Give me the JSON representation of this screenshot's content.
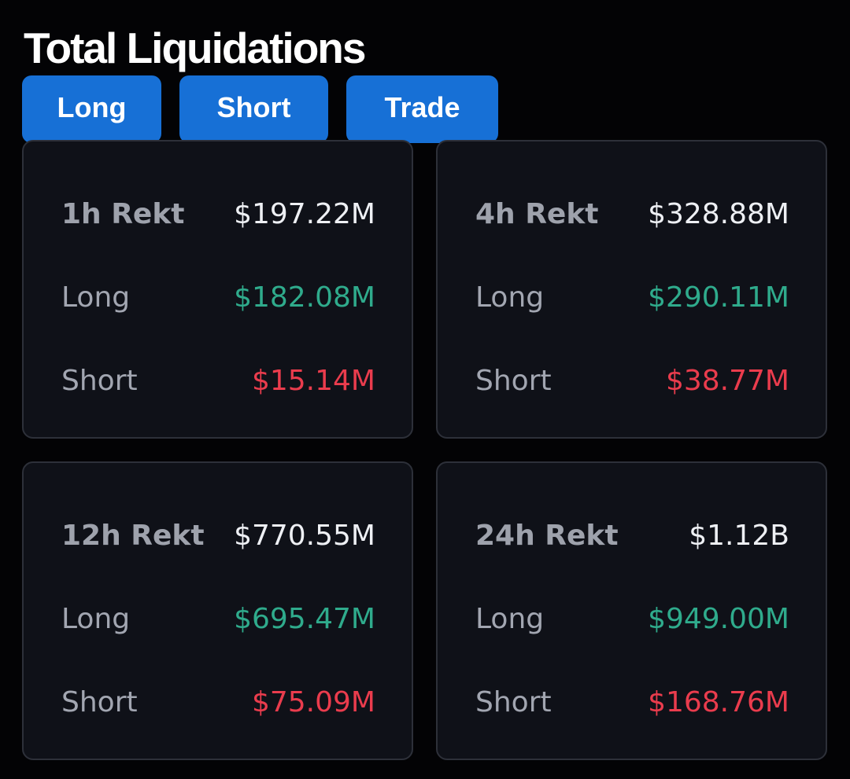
{
  "header": {
    "title": "Total Liquidations"
  },
  "buttons": {
    "long": "Long",
    "short": "Short",
    "trade": "Trade"
  },
  "colors": {
    "accent": "#1770d6",
    "long": "#2fab8c",
    "short": "#ea3c4d",
    "card_bg": "#0f1118",
    "page_bg": "#030305"
  },
  "cards": [
    {
      "period_label": "1h Rekt",
      "total": "$197.22M",
      "long_label": "Long",
      "long": "$182.08M",
      "short_label": "Short",
      "short": "$15.14M"
    },
    {
      "period_label": "4h Rekt",
      "total": "$328.88M",
      "long_label": "Long",
      "long": "$290.11M",
      "short_label": "Short",
      "short": "$38.77M"
    },
    {
      "period_label": "12h Rekt",
      "total": "$770.55M",
      "long_label": "Long",
      "long": "$695.47M",
      "short_label": "Short",
      "short": "$75.09M"
    },
    {
      "period_label": "24h Rekt",
      "total": "$1.12B",
      "long_label": "Long",
      "long": "$949.00M",
      "short_label": "Short",
      "short": "$168.76M"
    }
  ]
}
